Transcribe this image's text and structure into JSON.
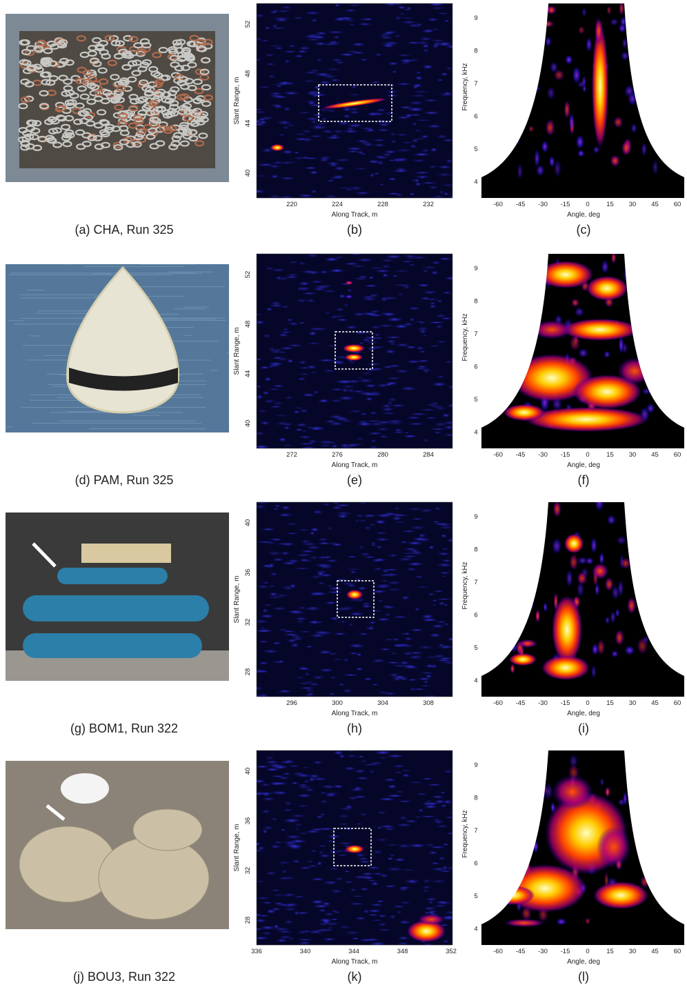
{
  "panels": [
    {
      "caption": "(a) CHA, Run 325",
      "image": {
        "caption": "(b)",
        "x_label": "Along Track, m",
        "y_label": "Slant Range, m",
        "xticks": [
          "220",
          "224",
          "228",
          "232"
        ],
        "yticks": [
          "52",
          "48",
          "44",
          "40"
        ]
      },
      "spectrum": {
        "caption": "(c)",
        "x_label": "Angle, deg",
        "y_label": "Frequency, kHz",
        "xticks": [
          "-60",
          "-45",
          "-30",
          "-15",
          "0",
          "15",
          "30",
          "45",
          "60"
        ],
        "yticks": [
          "9",
          "8",
          "7",
          "6",
          "5",
          "4"
        ]
      }
    },
    {
      "caption": "(d) PAM, Run 325",
      "image": {
        "caption": "(e)",
        "x_label": "Along Track, m",
        "y_label": "Slant Range, m",
        "xticks": [
          "272",
          "276",
          "280",
          "284"
        ],
        "yticks": [
          "52",
          "48",
          "44",
          "40"
        ]
      },
      "spectrum": {
        "caption": "(f)",
        "x_label": "Angle, deg",
        "y_label": "Frequency, kHz",
        "xticks": [
          "-60",
          "-45",
          "-30",
          "-15",
          "0",
          "15",
          "30",
          "45",
          "60"
        ],
        "yticks": [
          "9",
          "8",
          "7",
          "6",
          "5",
          "4"
        ]
      }
    },
    {
      "caption": "(g) BOM1, Run 322",
      "image": {
        "caption": "(h)",
        "x_label": "Along Track, m",
        "y_label": "Slant Range, m",
        "xticks": [
          "296",
          "300",
          "304",
          "308"
        ],
        "yticks": [
          "40",
          "36",
          "32",
          "28"
        ]
      },
      "spectrum": {
        "caption": "(i)",
        "x_label": "Angle, deg",
        "y_label": "Frequency, kHz",
        "xticks": [
          "-60",
          "-45",
          "-30",
          "-15",
          "0",
          "15",
          "30",
          "45",
          "60"
        ],
        "yticks": [
          "9",
          "8",
          "7",
          "6",
          "5",
          "4"
        ]
      }
    },
    {
      "caption": "(j) BOU3, Run 322",
      "image": {
        "caption": "(k)",
        "x_label": "Along Track, m",
        "y_label": "Slant Range, m",
        "xticks": [
          "336",
          "340",
          "344",
          "348",
          "352"
        ],
        "yticks": [
          "40",
          "36",
          "32",
          "28"
        ]
      },
      "spectrum": {
        "caption": "(l)",
        "x_label": "Angle, deg",
        "y_label": "Frequency, kHz",
        "xticks": [
          "-60",
          "-45",
          "-30",
          "-15",
          "0",
          "15",
          "30",
          "45",
          "60"
        ],
        "yticks": [
          "9",
          "8",
          "7",
          "6",
          "5",
          "4"
        ]
      }
    }
  ]
}
